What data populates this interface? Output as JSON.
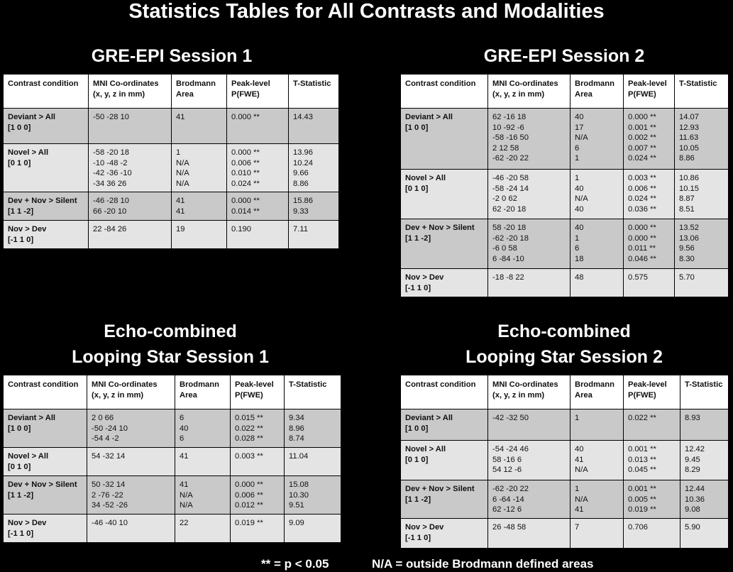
{
  "title": "Statistics Tables for All Contrasts and Modalities",
  "headers": [
    "Contrast condition",
    "MNI Co-ordinates\n(x, y, z in mm)",
    "Brodmann\nArea",
    "Peak-level\nP(FWE)",
    "T-Statistic"
  ],
  "tables": [
    {
      "title": "GRE-EPI Session 1",
      "rows": [
        {
          "cond": "Deviant > All\n[1 0 0]",
          "mni": "-50 -28 10",
          "ba": "41",
          "p": "0.000 **",
          "t": "14.43"
        },
        {
          "cond": "Novel > All\n[0 1 0]",
          "mni": "-58 -20 18\n-10 -48 -2\n-42 -36 -10\n-34 36 26",
          "ba": "1\nN/A\nN/A\nN/A",
          "p": "0.000 **\n0.006 **\n0.010 **\n0.024 **",
          "t": "13.96\n10.24\n9.66\n8.86"
        },
        {
          "cond": "Dev + Nov > Silent\n[1 1 -2]",
          "mni": "-46 -28 10\n66 -20 10",
          "ba": "41\n41",
          "p": "0.000 **\n0.014 **",
          "t": "15.86\n9.33"
        },
        {
          "cond": "Nov > Dev\n[-1 1 0]",
          "mni": "22 -84 26",
          "ba": "19",
          "p": "0.190",
          "t": "7.11"
        }
      ]
    },
    {
      "title": "GRE-EPI Session 2",
      "rows": [
        {
          "cond": "Deviant > All\n[1 0 0]",
          "mni": "62 -16 18\n10 -92 -6\n-58 -16 50\n2 12 58\n-62 -20 22",
          "ba": "40\n17\nN/A\n6\n1",
          "p": "0.000 **\n0.001 **\n0.002 **\n0.007 **\n0.024 **",
          "t": "14.07\n12.93\n11.63\n10.05\n8.86"
        },
        {
          "cond": "Novel > All\n[0 1 0]",
          "mni": "-46 -20 58\n-58 -24 14\n-2 0 62\n62 -20 18",
          "ba": "1\n40\nN/A\n40",
          "p": "0.003 **\n0.006 **\n0.024 **\n0.036 **",
          "t": "10.86\n10.15\n8.87\n8.51"
        },
        {
          "cond": "Dev + Nov > Silent\n[1 1 -2]",
          "mni": "58 -20 18\n-62 -20 18\n-6 0 58\n6 -84 -10",
          "ba": "40\n1\n6\n18",
          "p": "0.000 **\n0.000 **\n0.011 **\n0.046 **",
          "t": "13.52\n13.06\n9.56\n8.30"
        },
        {
          "cond": "Nov > Dev\n[-1 1 0]",
          "mni": "-18 -8 22",
          "ba": "48",
          "p": "0.575",
          "t": "5.70"
        }
      ]
    },
    {
      "title": "Echo-combined\nLooping Star Session 1",
      "rows": [
        {
          "cond": "Deviant > All\n[1 0 0]",
          "mni": "2 0 66\n-50 -24 10\n-54 4 -2",
          "ba": "6\n40\n6",
          "p": "0.015 **\n0.022 **\n0.028 **",
          "t": "9.34\n8.96\n8.74"
        },
        {
          "cond": "Novel > All\n[0 1 0]",
          "mni": "54 -32 14",
          "ba": "41",
          "p": "0.003 **",
          "t": "11.04"
        },
        {
          "cond": "Dev + Nov > Silent\n[1 1 -2]",
          "mni": "50 -32 14\n2 -76 -22\n34 -52 -26",
          "ba": "41\nN/A\nN/A",
          "p": "0.000 **\n0.006 **\n0.012 **",
          "t": "15.08\n10.30\n9.51"
        },
        {
          "cond": "Nov > Dev\n[-1 1 0]",
          "mni": "-46 -40 10",
          "ba": "22",
          "p": "0.019 **",
          "t": "9.09"
        }
      ]
    },
    {
      "title": "Echo-combined\nLooping Star Session 2",
      "rows": [
        {
          "cond": "Deviant > All\n[1 0 0]",
          "mni": "-42 -32 50",
          "ba": "1",
          "p": "0.022 **",
          "t": "8.93"
        },
        {
          "cond": "Novel > All\n[0 1 0]",
          "mni": "-54 -24 46\n58 -16 6\n54 12 -6",
          "ba": "40\n41\nN/A",
          "p": "0.001 **\n0.013 **\n0.045 **",
          "t": "12.42\n9.45\n8.29"
        },
        {
          "cond": "Dev + Nov > Silent\n[1 1 -2]",
          "mni": "-62 -20 22\n6 -64 -14\n62 -12 6",
          "ba": "1\nN/A\n41",
          "p": "0.001 **\n0.005 **\n0.019 **",
          "t": "12.44\n10.36\n9.08"
        },
        {
          "cond": "Nov > Dev\n[-1 1 0]",
          "mni": "26 -48 58",
          "ba": "7",
          "p": "0.706",
          "t": "5.90"
        }
      ]
    }
  ],
  "footer": {
    "significance": "** = p < 0.05",
    "na_note": "N/A = outside Brodmann defined areas"
  }
}
